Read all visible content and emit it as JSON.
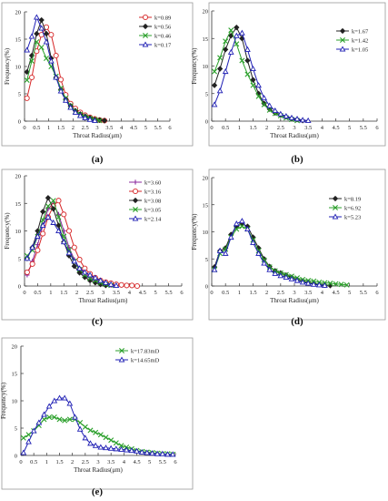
{
  "panels": [
    {
      "caption_text": "(a)"
    },
    {
      "caption_text": "(b)"
    },
    {
      "caption_text": "(c)"
    },
    {
      "caption_text": "(d)"
    },
    {
      "caption_text": "(e)"
    }
  ],
  "chart_data": [
    {
      "type": "line",
      "panel": "(a)",
      "xlabel": "Throat Radius(μm)",
      "ylabel": "Frequency(%)",
      "xlim": [
        0,
        6
      ],
      "ylim": [
        0,
        20
      ],
      "xticks": [
        0,
        0.5,
        1,
        1.5,
        2,
        2.5,
        3,
        3.5,
        4,
        4.5,
        5,
        5.5,
        6
      ],
      "yticks": [
        0,
        5,
        10,
        15,
        20
      ],
      "xtick_labels": [
        "0",
        "0.5",
        "1",
        "1.5",
        "2",
        "2.5",
        "3",
        "3.5",
        "4",
        "4.5",
        "5",
        "5.5",
        "6"
      ],
      "ytick_labels": [
        "0",
        "5",
        "10",
        "15",
        "20"
      ],
      "legend_position": "top-right",
      "series": [
        {
          "name": "k=0.89",
          "color": "#d62728",
          "marker": "circle",
          "x": [
            0.1,
            0.3,
            0.5,
            0.7,
            0.9,
            1.1,
            1.3,
            1.5,
            1.7,
            1.9,
            2.1,
            2.3,
            2.5,
            2.7,
            2.9,
            3.1,
            3.3
          ],
          "y": [
            4.2,
            8.0,
            12.8,
            15.8,
            17.2,
            15.8,
            12.0,
            7.6,
            4.8,
            3.2,
            2.3,
            1.6,
            1.1,
            0.7,
            0.4,
            0.2,
            0.1
          ]
        },
        {
          "name": "k=0.56",
          "color": "#222222",
          "marker": "diamond",
          "x": [
            0.1,
            0.3,
            0.5,
            0.7,
            0.9,
            1.1,
            1.3,
            1.5,
            1.7,
            1.9,
            2.1,
            2.3,
            2.5,
            2.7,
            2.9,
            3.1,
            3.3
          ],
          "y": [
            9.0,
            12.0,
            16.0,
            18.5,
            16.0,
            11.5,
            8.0,
            5.8,
            4.0,
            2.8,
            1.9,
            1.3,
            0.9,
            0.6,
            0.3,
            0.2,
            0.1
          ]
        },
        {
          "name": "k=0.46",
          "color": "#2ca02c",
          "marker": "x",
          "x": [
            0.1,
            0.3,
            0.5,
            0.7,
            0.9,
            1.1,
            1.3,
            1.5,
            1.7,
            1.9,
            2.1,
            2.3,
            2.5,
            2.7,
            2.9,
            3.1
          ],
          "y": [
            7.5,
            11.0,
            14.5,
            13.5,
            11.5,
            10.0,
            8.2,
            6.0,
            4.2,
            2.8,
            1.8,
            1.2,
            0.8,
            0.5,
            0.3,
            0.1
          ]
        },
        {
          "name": "k=0.17",
          "color": "#1f1fb4",
          "marker": "triangle",
          "x": [
            0.1,
            0.3,
            0.5,
            0.7,
            0.9,
            1.1,
            1.3,
            1.5,
            1.7,
            1.9,
            2.1,
            2.3,
            2.5,
            2.7,
            2.9
          ],
          "y": [
            13.0,
            15.5,
            19.0,
            17.0,
            14.5,
            11.0,
            8.0,
            5.5,
            3.8,
            2.5,
            1.6,
            1.0,
            0.6,
            0.3,
            0.1
          ]
        }
      ]
    },
    {
      "type": "line",
      "panel": "(b)",
      "xlabel": "Throat Radius(μm)",
      "ylabel": "Frequency(%)",
      "xlim": [
        0,
        6
      ],
      "ylim": [
        0,
        20
      ],
      "xticks": [
        0,
        0.5,
        1,
        1.5,
        2,
        2.5,
        3,
        3.5,
        4,
        4.5,
        5,
        5.5,
        6
      ],
      "yticks": [
        0,
        5,
        10,
        15,
        20
      ],
      "xtick_labels": [
        "0",
        "0.5",
        "1",
        "1.5",
        "2",
        "2.5",
        "3",
        "3.5",
        "4",
        "4.5",
        "5",
        "5.5",
        "6"
      ],
      "ytick_labels": [
        "0",
        "5",
        "10",
        "15",
        "20"
      ],
      "legend_position": "top-right",
      "series": [
        {
          "name": "k=1.67",
          "color": "#222222",
          "marker": "diamond",
          "x": [
            0.1,
            0.3,
            0.5,
            0.7,
            0.9,
            1.1,
            1.3,
            1.5,
            1.7,
            1.9,
            2.1,
            2.3,
            2.5,
            2.7,
            2.9,
            3.1,
            3.3
          ],
          "y": [
            6.5,
            9.5,
            13.0,
            15.5,
            17.0,
            15.0,
            11.0,
            7.5,
            5.0,
            3.2,
            2.2,
            1.5,
            1.1,
            0.8,
            0.5,
            0.3,
            0.1
          ]
        },
        {
          "name": "k=1.42",
          "color": "#2ca02c",
          "marker": "x",
          "x": [
            0.1,
            0.3,
            0.5,
            0.7,
            0.9,
            1.1,
            1.3,
            1.5,
            1.7,
            1.9,
            2.1,
            2.3,
            2.5,
            2.7,
            2.9,
            3.1
          ],
          "y": [
            9.0,
            11.5,
            14.5,
            16.5,
            14.0,
            11.0,
            8.5,
            6.5,
            4.5,
            3.0,
            2.0,
            1.4,
            1.0,
            0.6,
            0.3,
            0.1
          ]
        },
        {
          "name": "k=1.05",
          "color": "#1f1fb4",
          "marker": "triangle",
          "x": [
            0.1,
            0.3,
            0.5,
            0.7,
            0.9,
            1.1,
            1.3,
            1.5,
            1.7,
            1.9,
            2.1,
            2.3,
            2.5,
            2.7,
            2.9,
            3.1,
            3.3,
            3.5
          ],
          "y": [
            3.0,
            5.5,
            9.0,
            12.5,
            15.5,
            16.0,
            13.0,
            9.5,
            6.5,
            4.2,
            2.8,
            1.9,
            1.3,
            0.9,
            0.6,
            0.4,
            0.2,
            0.1
          ]
        }
      ]
    },
    {
      "type": "line",
      "panel": "(c)",
      "xlabel": "Throat Radius(μm)",
      "ylabel": "Frequency(%)",
      "xlim": [
        0,
        6
      ],
      "ylim": [
        0,
        20
      ],
      "xticks": [
        0,
        0.5,
        1,
        1.5,
        2,
        2.5,
        3,
        3.5,
        4,
        4.5,
        5,
        5.5,
        6
      ],
      "yticks": [
        0,
        5,
        10,
        15,
        20
      ],
      "xtick_labels": [
        "0",
        "0.5",
        "1",
        "1.5",
        "2",
        "2.5",
        "3",
        "3.5",
        "4",
        "4.5",
        "5",
        "5.5",
        "6"
      ],
      "ytick_labels": [
        "0",
        "5",
        "10",
        "15",
        "20"
      ],
      "legend_position": "top-right",
      "series": [
        {
          "name": "k=3.60",
          "color": "#8b2a9e",
          "marker": "plus",
          "x": [
            0.1,
            0.3,
            0.5,
            0.7,
            0.9,
            1.1,
            1.3,
            1.5,
            1.7,
            1.9,
            2.1,
            2.3,
            2.5,
            2.7,
            2.9,
            3.1,
            3.3
          ],
          "y": [
            2.0,
            4.5,
            7.5,
            11.0,
            14.0,
            15.0,
            13.0,
            10.0,
            7.0,
            4.8,
            3.2,
            2.2,
            1.5,
            1.0,
            0.6,
            0.3,
            0.1
          ]
        },
        {
          "name": "k=3.16",
          "color": "#d62728",
          "marker": "circle",
          "x": [
            0.1,
            0.3,
            0.5,
            0.7,
            0.9,
            1.1,
            1.3,
            1.5,
            1.7,
            1.9,
            2.1,
            2.3,
            2.5,
            2.7,
            2.9,
            3.1,
            3.3,
            3.5,
            3.7,
            3.9,
            4.1,
            4.3
          ],
          "y": [
            2.5,
            4.0,
            6.5,
            9.5,
            12.5,
            14.5,
            15.5,
            13.0,
            10.0,
            7.0,
            4.8,
            3.2,
            2.2,
            1.5,
            1.0,
            0.7,
            0.5,
            0.3,
            0.2,
            0.1,
            0.1,
            0.0
          ]
        },
        {
          "name": "k=3.08",
          "color": "#222222",
          "marker": "diamond",
          "x": [
            0.1,
            0.3,
            0.5,
            0.7,
            0.9,
            1.1,
            1.3,
            1.5,
            1.7,
            1.9,
            2.1,
            2.3,
            2.5,
            2.7,
            2.9,
            3.1
          ],
          "y": [
            5.0,
            7.0,
            10.0,
            13.5,
            16.0,
            14.0,
            11.0,
            8.0,
            5.5,
            3.6,
            2.4,
            1.6,
            1.0,
            0.6,
            0.3,
            0.1
          ]
        },
        {
          "name": "k=3.05",
          "color": "#2ca02c",
          "marker": "x",
          "x": [
            0.1,
            0.3,
            0.5,
            0.7,
            0.9,
            1.1,
            1.3,
            1.5,
            1.7,
            1.9,
            2.1,
            2.3,
            2.5,
            2.7,
            2.9,
            3.1,
            3.3
          ],
          "y": [
            5.5,
            6.5,
            9.0,
            12.0,
            14.5,
            15.5,
            12.5,
            9.0,
            6.5,
            4.5,
            3.0,
            2.0,
            1.4,
            1.0,
            0.6,
            0.3,
            0.1
          ]
        },
        {
          "name": "k=2.14",
          "color": "#1f1fb4",
          "marker": "triangle",
          "x": [
            0.1,
            0.3,
            0.5,
            0.7,
            0.9,
            1.1,
            1.3,
            1.5,
            1.7,
            1.9,
            2.1,
            2.3,
            2.5,
            2.7,
            2.9,
            3.1,
            3.3,
            3.5
          ],
          "y": [
            5.0,
            7.0,
            9.0,
            11.0,
            12.5,
            11.5,
            10.0,
            8.0,
            6.0,
            4.5,
            3.2,
            2.5,
            2.0,
            1.5,
            1.0,
            0.6,
            0.3,
            0.1
          ]
        }
      ]
    },
    {
      "type": "line",
      "panel": "(d)",
      "xlabel": "Throat Radius(μm)",
      "ylabel": "Frequency(%)",
      "xlim": [
        0,
        6
      ],
      "ylim": [
        0,
        20
      ],
      "xticks": [
        0,
        0.5,
        1,
        1.5,
        2,
        2.5,
        3,
        3.5,
        4,
        4.5,
        5,
        5.5,
        6
      ],
      "yticks": [
        0,
        5,
        10,
        15,
        20
      ],
      "xtick_labels": [
        "0",
        "0.5",
        "1",
        "1.5",
        "2",
        "2.5",
        "3",
        "3.5",
        "4",
        "4.5",
        "5",
        "5.5",
        "6"
      ],
      "ytick_labels": [
        "0",
        "5",
        "10",
        "15",
        "20"
      ],
      "legend_position": "top-right",
      "series": [
        {
          "name": "k=8.19",
          "color": "#222222",
          "marker": "diamond",
          "x": [
            0.1,
            0.3,
            0.5,
            0.7,
            0.9,
            1.1,
            1.3,
            1.5,
            1.7,
            1.9,
            2.1,
            2.3,
            2.5,
            2.7,
            2.9,
            3.1,
            3.3,
            3.5,
            3.7,
            3.9,
            4.1,
            4.3
          ],
          "y": [
            3.5,
            6.5,
            7.0,
            9.5,
            11.0,
            11.5,
            11.0,
            9.0,
            7.0,
            5.0,
            3.6,
            2.8,
            2.4,
            2.0,
            1.6,
            1.2,
            0.9,
            0.7,
            0.5,
            0.3,
            0.2,
            0.1
          ]
        },
        {
          "name": "k=6.92",
          "color": "#2ca02c",
          "marker": "x",
          "x": [
            0.1,
            0.3,
            0.5,
            0.7,
            0.9,
            1.1,
            1.3,
            1.5,
            1.7,
            1.9,
            2.1,
            2.3,
            2.5,
            2.7,
            2.9,
            3.1,
            3.3,
            3.5,
            3.7,
            3.9,
            4.1,
            4.3,
            4.5,
            4.7,
            4.9
          ],
          "y": [
            3.0,
            6.0,
            6.8,
            9.0,
            10.5,
            11.0,
            10.5,
            8.5,
            6.5,
            4.8,
            3.5,
            2.8,
            2.4,
            2.1,
            1.8,
            1.5,
            1.2,
            1.0,
            0.9,
            0.7,
            0.6,
            0.5,
            0.4,
            0.3,
            0.2
          ]
        },
        {
          "name": "k=5.23",
          "color": "#1f1fb4",
          "marker": "triangle",
          "x": [
            0.1,
            0.3,
            0.5,
            0.7,
            0.9,
            1.1,
            1.3,
            1.5,
            1.7,
            1.9,
            2.1,
            2.3,
            2.5,
            2.7,
            2.9,
            3.1,
            3.3,
            3.5,
            3.7,
            3.9,
            4.1
          ],
          "y": [
            3.0,
            6.5,
            6.0,
            9.0,
            11.5,
            12.0,
            10.5,
            8.0,
            6.0,
            4.2,
            3.0,
            2.3,
            1.9,
            1.6,
            1.3,
            1.0,
            0.7,
            0.5,
            0.3,
            0.2,
            0.1
          ]
        }
      ]
    },
    {
      "type": "line",
      "panel": "(e)",
      "xlabel": "Throat Radius(μm)",
      "ylabel": "Frequency(%)",
      "xlim": [
        0,
        6
      ],
      "ylim": [
        0,
        20
      ],
      "xticks": [
        0,
        0.5,
        1,
        1.5,
        2,
        2.5,
        3,
        3.5,
        4,
        4.5,
        5,
        5.5,
        6
      ],
      "yticks": [
        0,
        5,
        10,
        15,
        20
      ],
      "xtick_labels": [
        "0",
        "0.5",
        "1",
        "1.5",
        "2",
        "2.5",
        "3",
        "3.5",
        "4",
        "4.5",
        "5",
        "5.5",
        "6"
      ],
      "ytick_labels": [
        "0",
        "5",
        "10",
        "15",
        "20"
      ],
      "legend_position": "top-right",
      "series": [
        {
          "name": "k=17.83mD",
          "color": "#2ca02c",
          "marker": "x",
          "x": [
            0.1,
            0.3,
            0.5,
            0.7,
            0.9,
            1.1,
            1.3,
            1.5,
            1.7,
            1.9,
            2.1,
            2.3,
            2.5,
            2.7,
            2.9,
            3.1,
            3.3,
            3.5,
            3.7,
            3.9,
            4.1,
            4.3,
            4.5,
            4.7,
            4.9,
            5.1,
            5.3,
            5.5,
            5.7,
            5.9
          ],
          "y": [
            3.2,
            3.8,
            4.5,
            5.5,
            6.6,
            7.0,
            7.0,
            6.6,
            6.4,
            6.6,
            6.6,
            6.0,
            5.2,
            4.6,
            4.2,
            3.8,
            3.3,
            2.8,
            2.3,
            1.8,
            1.5,
            1.2,
            0.9,
            0.7,
            0.6,
            0.5,
            0.4,
            0.3,
            0.3,
            0.2
          ]
        },
        {
          "name": "k=14.65mD",
          "color": "#1f1fb4",
          "marker": "triangle",
          "x": [
            0.1,
            0.3,
            0.5,
            0.7,
            0.9,
            1.1,
            1.3,
            1.5,
            1.7,
            1.9,
            2.1,
            2.3,
            2.5,
            2.7,
            2.9,
            3.1,
            3.3,
            3.5,
            3.7,
            3.9,
            4.1,
            4.3,
            4.5,
            4.7,
            4.9,
            5.1,
            5.3,
            5.5,
            5.7,
            5.9
          ],
          "y": [
            0.5,
            2.5,
            4.5,
            6.0,
            7.5,
            9.0,
            10.0,
            10.5,
            10.5,
            9.5,
            7.0,
            4.8,
            3.2,
            2.2,
            1.8,
            1.5,
            1.4,
            1.3,
            1.2,
            1.1,
            1.0,
            0.9,
            0.8,
            0.6,
            0.5,
            0.4,
            0.3,
            0.3,
            0.2,
            0.2
          ]
        }
      ]
    }
  ]
}
